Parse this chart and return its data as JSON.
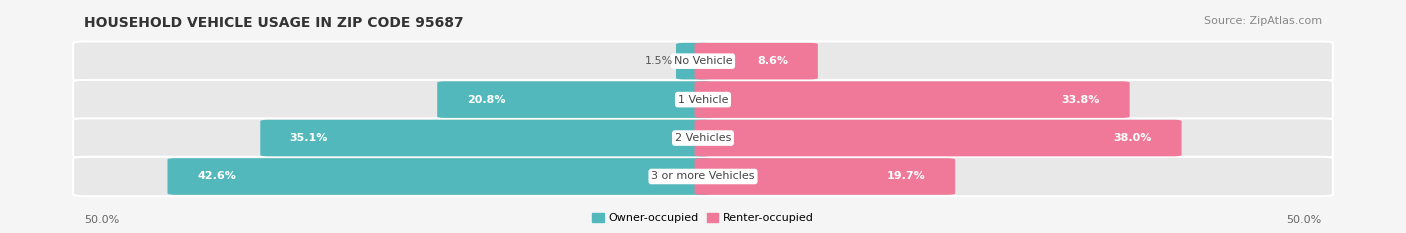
{
  "title": "HOUSEHOLD VEHICLE USAGE IN ZIP CODE 95687",
  "source": "Source: ZipAtlas.com",
  "categories": [
    "No Vehicle",
    "1 Vehicle",
    "2 Vehicles",
    "3 or more Vehicles"
  ],
  "owner_values": [
    1.5,
    20.8,
    35.1,
    42.6
  ],
  "renter_values": [
    8.6,
    33.8,
    38.0,
    19.7
  ],
  "owner_color": "#52b8bc",
  "renter_color": "#f07898",
  "fig_background": "#f5f5f5",
  "bar_background": "#e8e8e8",
  "row_background": "#f0f0f0",
  "xlim": 50.0,
  "title_fontsize": 10,
  "label_fontsize": 8,
  "value_fontsize": 8,
  "tick_fontsize": 8,
  "source_fontsize": 8,
  "category_fontsize": 8
}
